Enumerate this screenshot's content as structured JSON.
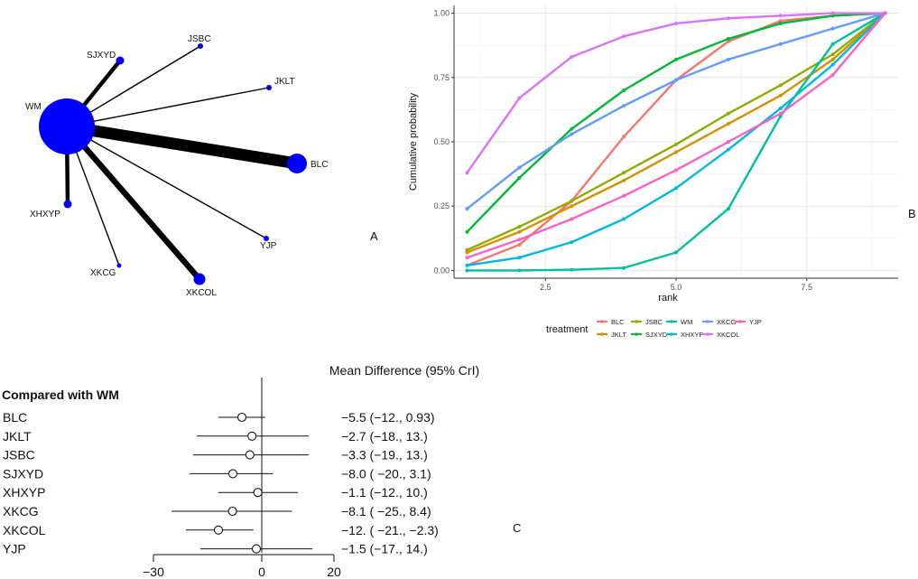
{
  "chart_data": [
    {
      "type": "network",
      "panel_label": "A",
      "nodes": [
        {
          "name": "WM",
          "label": "WM"
        },
        {
          "name": "BLC",
          "label": "BLC"
        },
        {
          "name": "JSBC",
          "label": "JSBC"
        },
        {
          "name": "JKLT",
          "label": "JKLT"
        },
        {
          "name": "SJXYD",
          "label": "SJXYD"
        },
        {
          "name": "XHXYP",
          "label": "XHXYP"
        },
        {
          "name": "XKCG",
          "label": "XKCG"
        },
        {
          "name": "XKCOL",
          "label": "XKCOL"
        },
        {
          "name": "YJP",
          "label": "YJP"
        }
      ]
    },
    {
      "type": "line",
      "panel_label": "B",
      "xlabel": "rank",
      "ylabel": "Cumulative probability",
      "xlim": [
        0.75,
        9.25
      ],
      "ylim": [
        -0.03,
        1.03
      ],
      "xticks": [
        "2.5",
        "5.0",
        "7.5"
      ],
      "yticks": [
        "0.00",
        "0.25",
        "0.50",
        "0.75",
        "1.00"
      ],
      "legend_title": "treatment",
      "x": [
        1,
        2,
        3,
        4,
        5,
        6,
        7,
        8,
        9
      ],
      "series": [
        {
          "name": "BLC",
          "color": "#F8766D",
          "values": [
            0.02,
            0.1,
            0.27,
            0.52,
            0.74,
            0.89,
            0.97,
            0.99,
            1.0
          ]
        },
        {
          "name": "JKLT",
          "color": "#D39200",
          "values": [
            0.07,
            0.15,
            0.25,
            0.35,
            0.46,
            0.57,
            0.68,
            0.82,
            1.0
          ]
        },
        {
          "name": "JSBC",
          "color": "#93AA00",
          "values": [
            0.08,
            0.17,
            0.27,
            0.38,
            0.49,
            0.61,
            0.72,
            0.84,
            1.0
          ]
        },
        {
          "name": "SJXYD",
          "color": "#00BA38",
          "values": [
            0.15,
            0.36,
            0.55,
            0.7,
            0.82,
            0.9,
            0.96,
            0.99,
            1.0
          ]
        },
        {
          "name": "WM",
          "color": "#00C19F",
          "values": [
            0.0,
            0.0,
            0.003,
            0.01,
            0.07,
            0.24,
            0.6,
            0.88,
            1.0
          ]
        },
        {
          "name": "XHXYP",
          "color": "#00B9E3",
          "values": [
            0.02,
            0.05,
            0.11,
            0.2,
            0.32,
            0.47,
            0.63,
            0.8,
            1.0
          ]
        },
        {
          "name": "XKCG",
          "color": "#619CFF",
          "values": [
            0.24,
            0.4,
            0.53,
            0.64,
            0.74,
            0.82,
            0.88,
            0.94,
            1.0
          ]
        },
        {
          "name": "XKCOL",
          "color": "#DB72FB",
          "values": [
            0.38,
            0.67,
            0.83,
            0.91,
            0.96,
            0.98,
            0.99,
            1.0,
            1.0
          ]
        },
        {
          "name": "YJP",
          "color": "#FF61C3",
          "values": [
            0.05,
            0.12,
            0.2,
            0.29,
            0.39,
            0.5,
            0.61,
            0.76,
            1.0
          ]
        }
      ]
    },
    {
      "type": "forest",
      "panel_label": "C",
      "title": "Mean Difference (95% CrI)",
      "subtitle": "Compared with WM",
      "xlim": [
        -30,
        20
      ],
      "xticks": [
        "−30",
        "0",
        "20"
      ],
      "xtick_values": [
        -30,
        0,
        20
      ],
      "rows": [
        {
          "name": "BLC",
          "mean": -5.5,
          "lower": -12,
          "upper": 0.93,
          "label": "−5.5 (−12., 0.93)"
        },
        {
          "name": "JKLT",
          "mean": -2.7,
          "lower": -18,
          "upper": 13,
          "label": "−2.7 (−18., 13.)"
        },
        {
          "name": "JSBC",
          "mean": -3.3,
          "lower": -19,
          "upper": 13,
          "label": "−3.3 (−19.,   13.)"
        },
        {
          "name": "SJXYD",
          "mean": -8.0,
          "lower": -20,
          "upper": 3.1,
          "label": "−8.0 ( −20., 3.1)"
        },
        {
          "name": "XHXYP",
          "mean": -1.1,
          "lower": -12,
          "upper": 10,
          "label": "−1.1 (−12., 10.)"
        },
        {
          "name": "XKCG",
          "mean": -8.1,
          "lower": -25,
          "upper": 8.4,
          "label": "−8.1 ( −25., 8.4)"
        },
        {
          "name": "XKCOL",
          "mean": -12,
          "lower": -21,
          "upper": -2.3,
          "label": "−12. ( −21., −2.3)"
        },
        {
          "name": "YJP",
          "mean": -1.5,
          "lower": -17,
          "upper": 14,
          "label": "−1.5 (−17., 14.)"
        }
      ]
    }
  ]
}
